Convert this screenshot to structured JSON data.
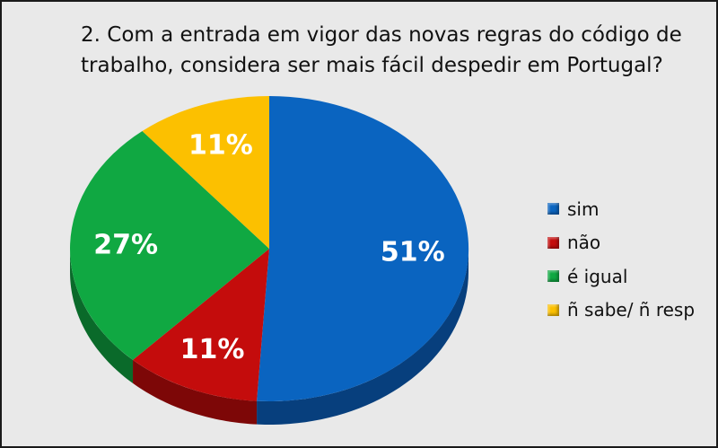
{
  "chart_data": {
    "type": "pie",
    "title_lines": [
      "2. Com a entrada em vigor das novas regras do código de",
      "trabalho, considera ser mais fácil despedir em Portugal?"
    ],
    "categories": [
      "sim",
      "não",
      "é igual",
      "ñ sabe/ ñ resp"
    ],
    "values": [
      51,
      11,
      27,
      11
    ],
    "labels": [
      "51%",
      "11%",
      "27%",
      "11%"
    ],
    "colors": [
      "#0a64c0",
      "#c40c0c",
      "#10a842",
      "#fcc000"
    ],
    "side_colors": [
      "#073f7d",
      "#7d0707",
      "#0a6a2a",
      "#a57d00"
    ],
    "legend_position": "right",
    "three_d": true
  }
}
